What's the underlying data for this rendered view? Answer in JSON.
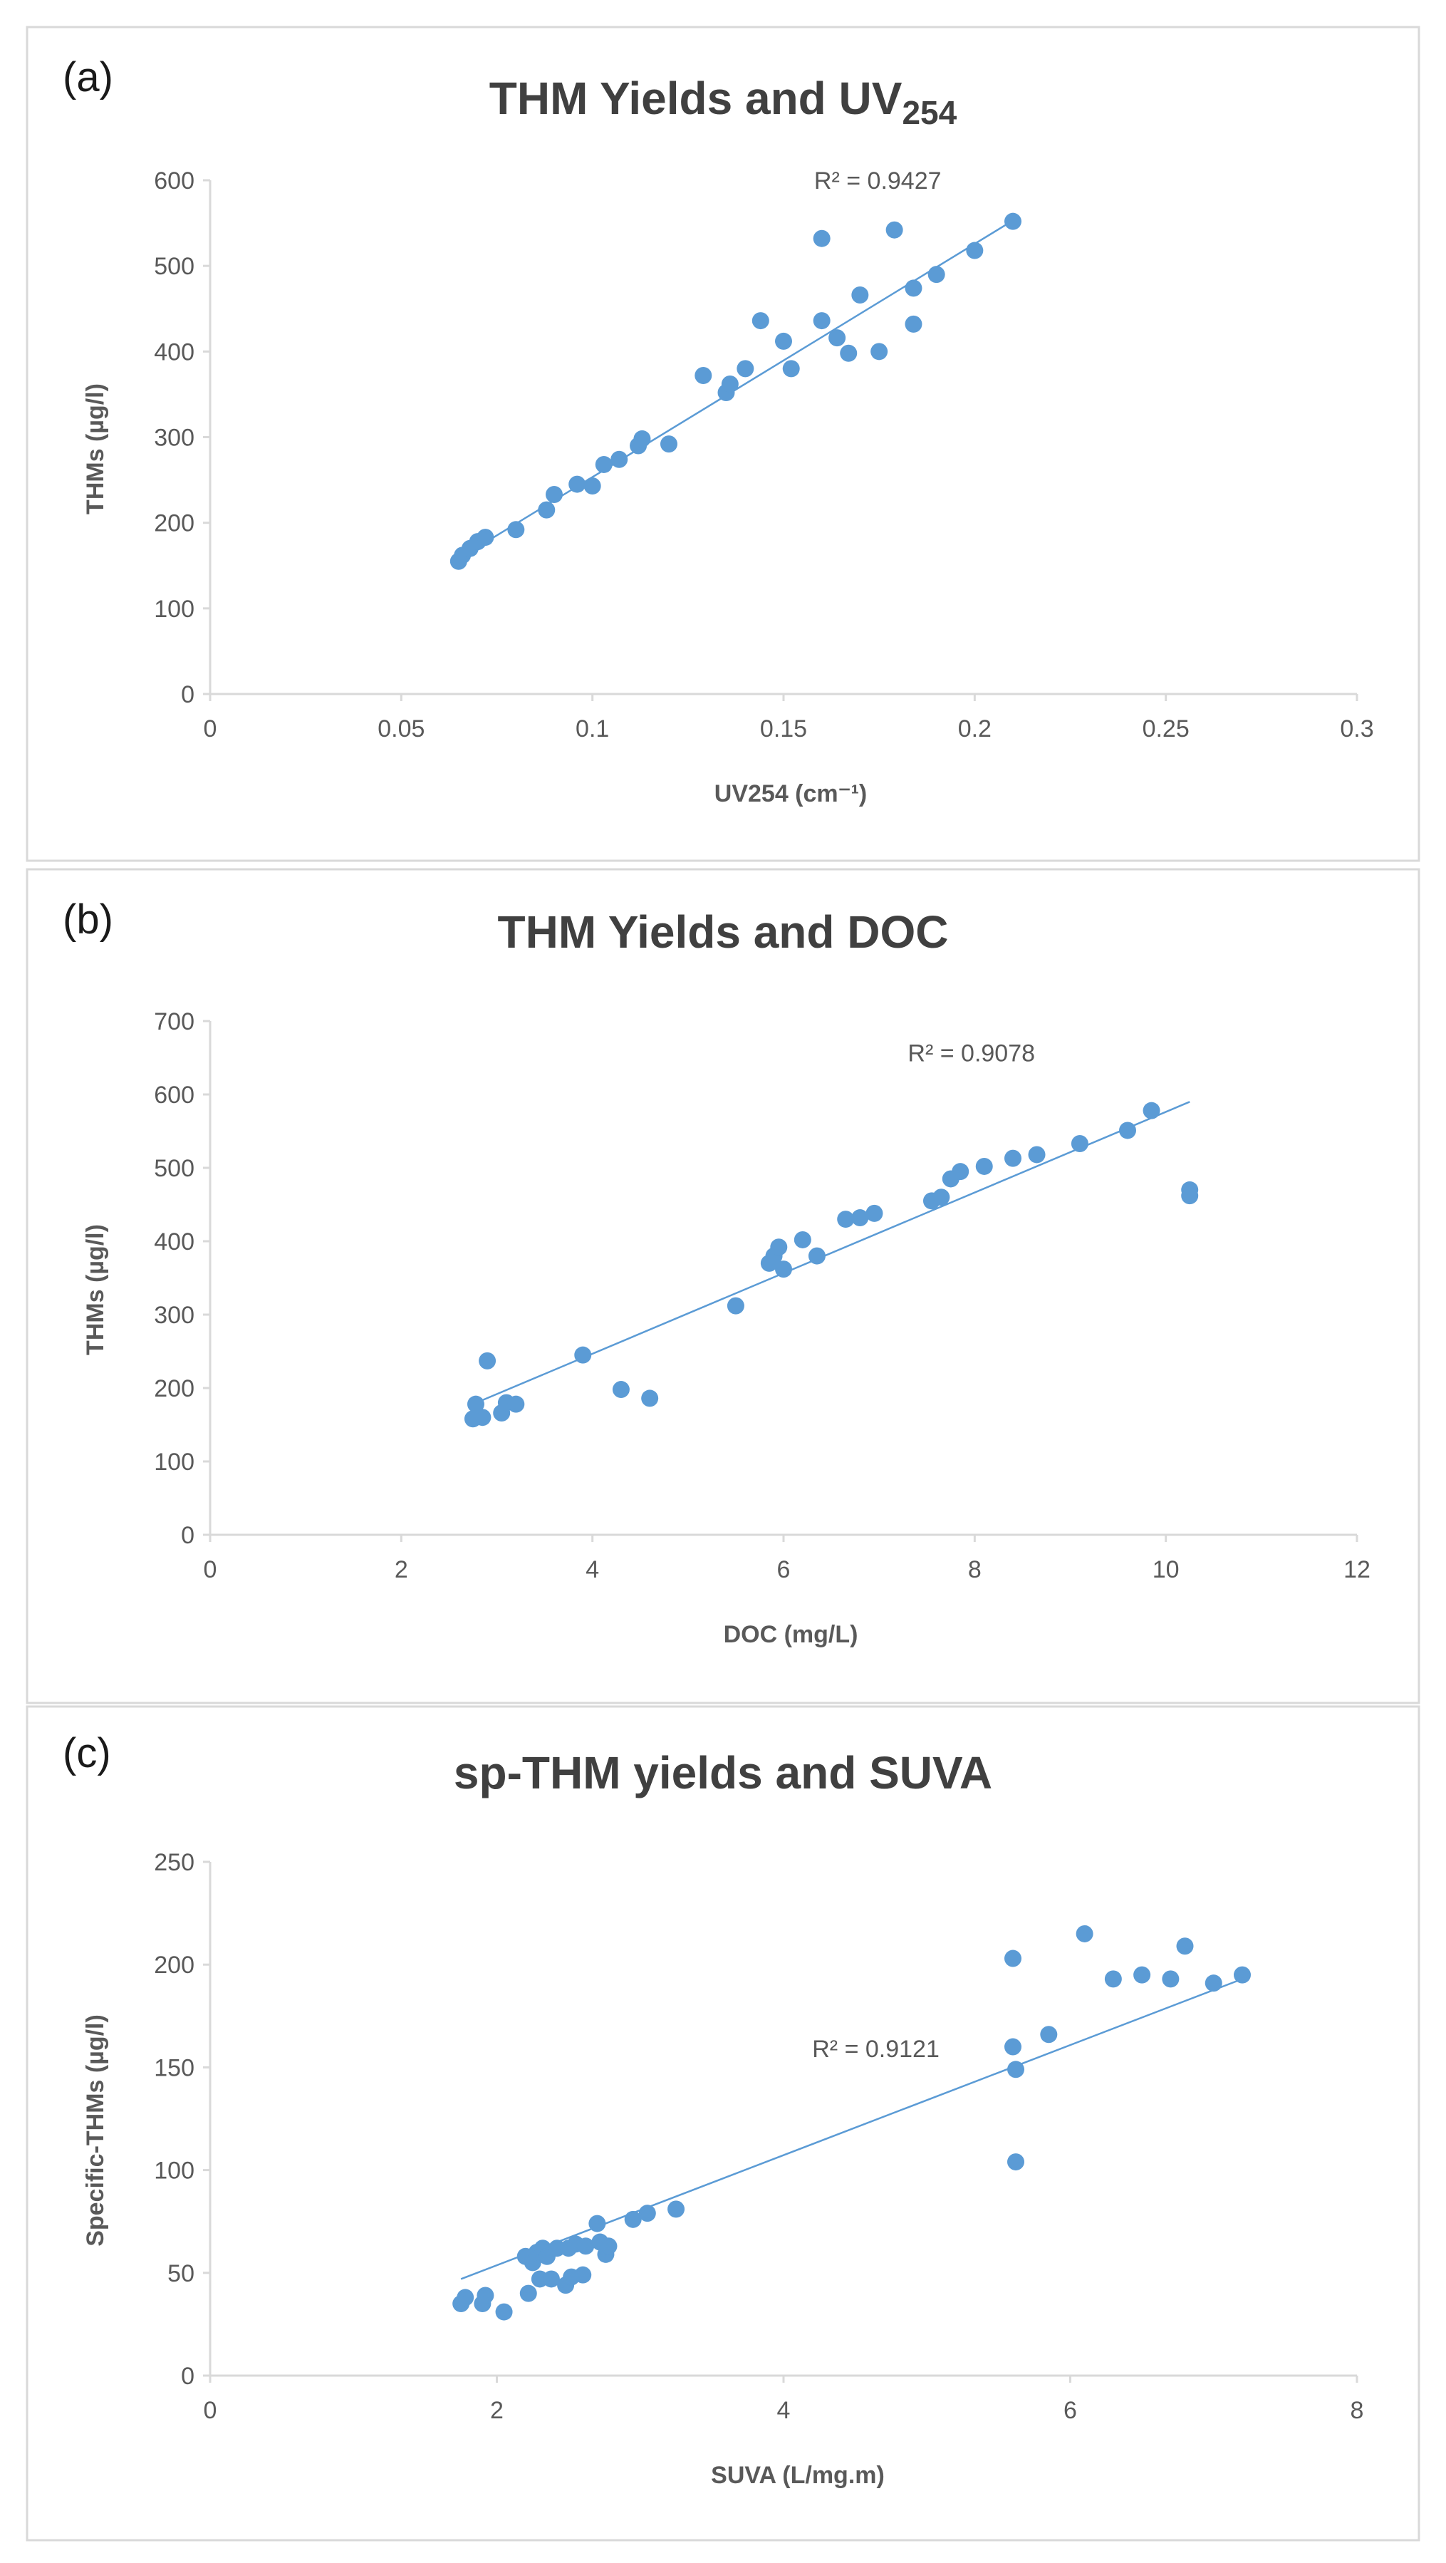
{
  "figure": {
    "background": "#ffffff",
    "point_color": "#5b9bd5",
    "text_color": "#595959"
  },
  "chart_data": [
    {
      "type": "scatter",
      "panel_label": "(a)",
      "title_main": "THM Yields and UV",
      "title_sub": "254",
      "xlabel": "UV254 (cm⁻¹)",
      "ylabel": "THMs (µg/l)",
      "xlim": [
        0,
        0.3
      ],
      "ylim": [
        0,
        600
      ],
      "x_ticks": [
        0,
        0.05,
        0.1,
        0.15,
        0.2,
        0.25,
        0.3
      ],
      "x_tick_labels": [
        "0",
        "0.05",
        "0.1",
        "0.15",
        "0.2",
        "0.25",
        "0.3"
      ],
      "y_ticks": [
        0,
        100,
        200,
        300,
        400,
        500,
        600
      ],
      "y_tick_labels": [
        "0",
        "100",
        "200",
        "300",
        "400",
        "500",
        "600"
      ],
      "trendline": {
        "x": [
          0.065,
          0.21
        ],
        "y": [
          158,
          553
        ]
      },
      "r_squared_label": "R² = 0.9427",
      "r_squared_at": {
        "x": 0.158,
        "y": 590
      },
      "points": {
        "x": [
          0.065,
          0.066,
          0.068,
          0.07,
          0.072,
          0.08,
          0.088,
          0.09,
          0.096,
          0.1,
          0.103,
          0.107,
          0.112,
          0.113,
          0.12,
          0.129,
          0.135,
          0.136,
          0.14,
          0.144,
          0.15,
          0.152,
          0.16,
          0.16,
          0.164,
          0.167,
          0.17,
          0.175,
          0.179,
          0.184,
          0.184,
          0.19,
          0.2,
          0.21
        ],
        "y": [
          155,
          162,
          170,
          178,
          183,
          192,
          215,
          233,
          245,
          243,
          268,
          274,
          290,
          298,
          292,
          372,
          352,
          362,
          380,
          436,
          412,
          380,
          436,
          532,
          416,
          398,
          466,
          400,
          542,
          474,
          432,
          490,
          518,
          552
        ]
      }
    },
    {
      "type": "scatter",
      "panel_label": "(b)",
      "title_main": "THM Yields and DOC",
      "title_sub": "",
      "xlabel": "DOC (mg/L)",
      "ylabel": "THMs (µg/l)",
      "xlim": [
        0,
        12
      ],
      "ylim": [
        0,
        700
      ],
      "x_ticks": [
        0,
        2,
        4,
        6,
        8,
        10,
        12
      ],
      "x_tick_labels": [
        "0",
        "2",
        "4",
        "6",
        "8",
        "10",
        "12"
      ],
      "y_ticks": [
        0,
        100,
        200,
        300,
        400,
        500,
        600,
        700
      ],
      "y_tick_labels": [
        "0",
        "100",
        "200",
        "300",
        "400",
        "500",
        "600",
        "700"
      ],
      "trendline": {
        "x": [
          2.75,
          10.25
        ],
        "y": [
          178,
          590
        ]
      },
      "r_squared_label": "R² = 0.9078",
      "r_squared_at": {
        "x": 7.3,
        "y": 645
      },
      "points": {
        "x": [
          2.75,
          2.78,
          2.85,
          2.9,
          3.05,
          3.1,
          3.2,
          3.9,
          4.3,
          4.6,
          5.5,
          5.85,
          5.9,
          5.95,
          6.0,
          6.2,
          6.35,
          6.65,
          6.8,
          6.95,
          7.55,
          7.65,
          7.75,
          7.85,
          8.1,
          8.4,
          8.65,
          9.1,
          9.6,
          9.85,
          10.25,
          10.25
        ],
        "y": [
          158,
          178,
          160,
          237,
          166,
          180,
          178,
          245,
          198,
          186,
          312,
          370,
          380,
          392,
          362,
          402,
          380,
          430,
          432,
          438,
          455,
          460,
          485,
          495,
          502,
          513,
          518,
          533,
          551,
          578,
          470,
          462
        ]
      }
    },
    {
      "type": "scatter",
      "panel_label": "(c)",
      "title_main": "sp-THM yields and SUVA",
      "title_sub": "",
      "xlabel": "SUVA (L/mg.m)",
      "ylabel": "Specific-THMs (µg/l)",
      "xlim": [
        0,
        8
      ],
      "ylim": [
        0,
        250
      ],
      "x_ticks": [
        0,
        2,
        4,
        6,
        8
      ],
      "x_tick_labels": [
        "0",
        "2",
        "4",
        "6",
        "8"
      ],
      "y_ticks": [
        0,
        50,
        100,
        150,
        200,
        250
      ],
      "y_tick_labels": [
        "0",
        "50",
        "100",
        "150",
        "200",
        "250"
      ],
      "trendline": {
        "x": [
          1.75,
          7.2
        ],
        "y": [
          47,
          193
        ]
      },
      "r_squared_label": "R² = 0.9121",
      "r_squared_at": {
        "x": 4.2,
        "y": 155
      },
      "points": {
        "x": [
          1.75,
          1.78,
          1.9,
          1.92,
          2.05,
          2.2,
          2.22,
          2.25,
          2.28,
          2.3,
          2.32,
          2.35,
          2.38,
          2.42,
          2.48,
          2.5,
          2.52,
          2.55,
          2.6,
          2.62,
          2.7,
          2.72,
          2.76,
          2.78,
          2.95,
          3.05,
          3.25,
          5.6,
          5.6,
          5.62,
          5.62,
          5.85,
          6.1,
          6.3,
          6.5,
          6.7,
          6.8,
          7.0,
          7.2
        ],
        "y": [
          35,
          38,
          35,
          39,
          31,
          58,
          40,
          55,
          60,
          47,
          62,
          58,
          47,
          62,
          44,
          62,
          48,
          64,
          49,
          63,
          74,
          65,
          59,
          63,
          76,
          79,
          81,
          203,
          160,
          149,
          104,
          166,
          215,
          193,
          195,
          193,
          209,
          191,
          195
        ]
      }
    }
  ]
}
